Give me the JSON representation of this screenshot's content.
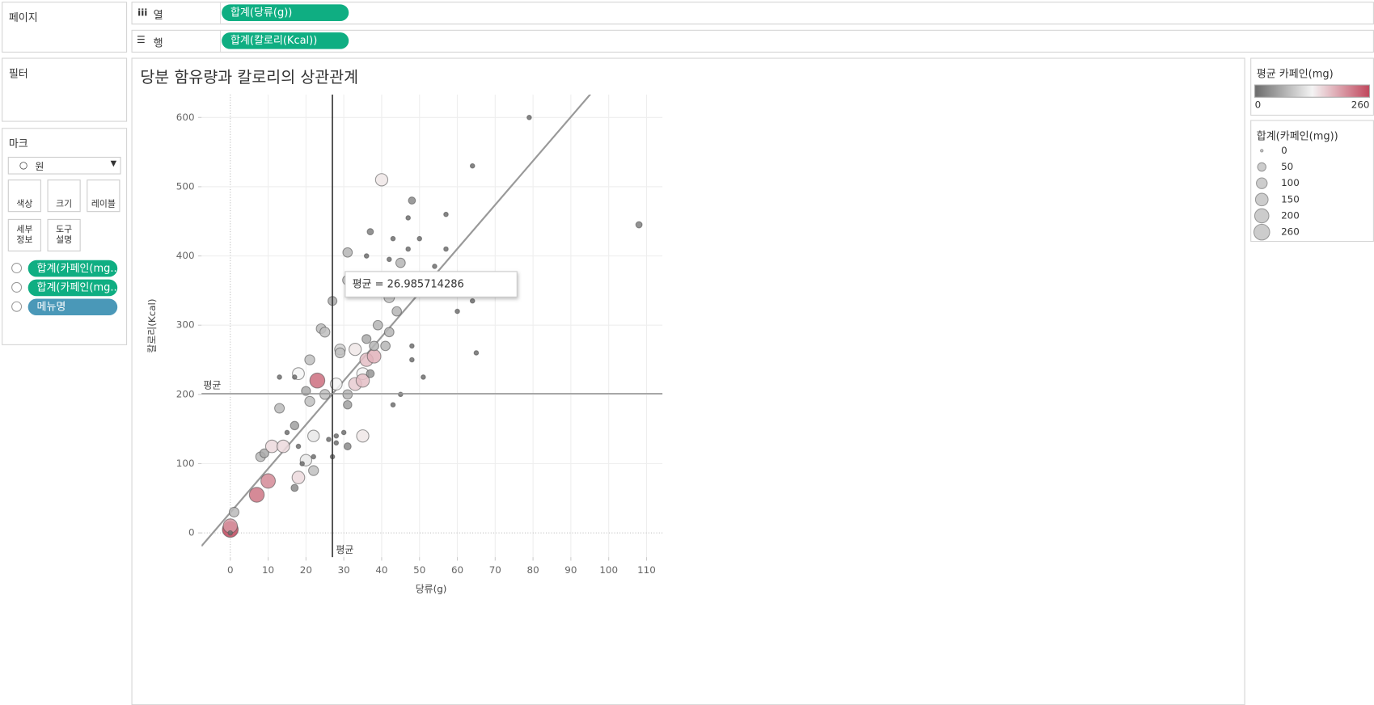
{
  "shelves": {
    "pages": "페이지",
    "columns": {
      "label": "열",
      "pill": "합계(당류(g))"
    },
    "rows": {
      "label": "행",
      "pill": "합계(칼로리(Kcal))"
    },
    "filters": "필터"
  },
  "marks_card": {
    "title": "마크",
    "mark_type": "원",
    "buttons": [
      "색상",
      "크기",
      "레이블",
      "세부\n정보",
      "도구\n설명"
    ],
    "pills": [
      "합계(카페인(mg..",
      "합계(카페인(mg..",
      "메뉴명"
    ]
  },
  "legends": {
    "color": {
      "title": "평균 카페인(mg)",
      "min": 0,
      "max": 260,
      "colors": [
        "#6b6b6b",
        "#f4f4f4",
        "#c0465c"
      ]
    },
    "size": {
      "title": "합계(카페인(mg))",
      "values": [
        0,
        50,
        100,
        150,
        200,
        260
      ]
    }
  },
  "chart_data": {
    "type": "scatter",
    "title": "당분 함유량과 칼로리의 상관관계",
    "x_label": "당류(g)",
    "y_label": "칼로리(Kcal)",
    "xlim": [
      -7.6,
      114.2
    ],
    "ylim": [
      -35,
      633
    ],
    "xticks": [
      0,
      10,
      20,
      30,
      40,
      50,
      60,
      70,
      80,
      90,
      100,
      110
    ],
    "yticks": [
      0,
      100,
      200,
      300,
      400,
      500,
      600
    ],
    "grid": true,
    "x": [
      0,
      0,
      0,
      1,
      7,
      10,
      8,
      9,
      11,
      14,
      13,
      17,
      17,
      18,
      20,
      22,
      22,
      21,
      20,
      21,
      18,
      23,
      25,
      24,
      25,
      27,
      28,
      29,
      29,
      31,
      31,
      31,
      31,
      31,
      33,
      33,
      35,
      35,
      35,
      36,
      36,
      38,
      38,
      39,
      37,
      40,
      41,
      42,
      42,
      44,
      45,
      48,
      37,
      79,
      64,
      108,
      57,
      47,
      50,
      43,
      47,
      36,
      54,
      57,
      42,
      60,
      64,
      65,
      48,
      48,
      51,
      45,
      43,
      13,
      17,
      19,
      28,
      28,
      30,
      26,
      27,
      22,
      15,
      18
    ],
    "values": [
      5,
      10,
      0,
      30,
      55,
      75,
      110,
      115,
      125,
      125,
      180,
      155,
      65,
      80,
      105,
      90,
      140,
      190,
      205,
      250,
      230,
      220,
      200,
      295,
      290,
      335,
      215,
      265,
      260,
      405,
      365,
      200,
      185,
      125,
      265,
      215,
      230,
      220,
      140,
      280,
      250,
      255,
      270,
      300,
      230,
      510,
      270,
      290,
      340,
      320,
      390,
      480,
      435,
      600,
      530,
      445,
      460,
      455,
      425,
      425,
      410,
      400,
      385,
      410,
      395,
      320,
      335,
      260,
      270,
      250,
      225,
      200,
      185,
      225,
      225,
      100,
      140,
      130,
      145,
      135,
      110,
      110,
      145,
      125
    ],
    "sizes": [
      260,
      200,
      5,
      75,
      225,
      210,
      75,
      60,
      150,
      150,
      75,
      50,
      30,
      150,
      120,
      80,
      120,
      80,
      60,
      80,
      130,
      230,
      80,
      75,
      80,
      60,
      130,
      100,
      80,
      70,
      80,
      70,
      50,
      30,
      140,
      160,
      130,
      170,
      140,
      60,
      170,
      180,
      70,
      70,
      40,
      140,
      70,
      70,
      90,
      70,
      70,
      30,
      20,
      5,
      5,
      20,
      5,
      5,
      5,
      5,
      5,
      5,
      5,
      5,
      5,
      5,
      5,
      5,
      5,
      5,
      5,
      5,
      5,
      5,
      5,
      5,
      5,
      5,
      5,
      5,
      5,
      5,
      5,
      5
    ],
    "ref_lines": [
      {
        "axis": "x",
        "value": 26.985714286,
        "label": "평균"
      },
      {
        "axis": "y",
        "value": 201,
        "label": "평균"
      }
    ],
    "trend": {
      "slope": 6.35,
      "intercept": 29.3
    },
    "tooltip": "평균 = 26.985714286"
  }
}
